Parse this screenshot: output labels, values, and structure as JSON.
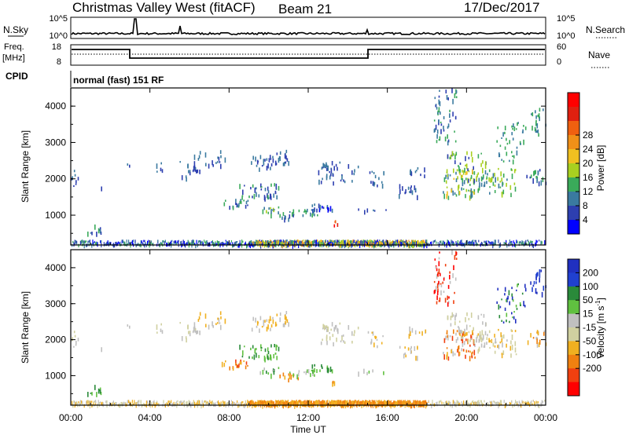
{
  "header": {
    "site": "Christmas Valley West (fitACF)",
    "beam": "Beam 21",
    "date": "17/Dec/2017"
  },
  "top_panels": {
    "nsky_label": "N.Sky",
    "nsky_ticks": [
      "10^5",
      "10^0"
    ],
    "nsearch_label": "N.Search",
    "nsearch_ticks": [
      "10^5",
      "10^0"
    ],
    "freq_label_line1": "Freq.",
    "freq_label_line2": "[MHz]",
    "freq_ticks": [
      "18",
      "8"
    ],
    "nave_label": "Nave",
    "nave_ticks": [
      "60",
      "0"
    ],
    "cpid_label": "CPID",
    "cpid_text": "normal (fast) 151 RF"
  },
  "colors": {
    "power_bar": [
      "#0000ff",
      "#2d3fb0",
      "#3a7aa0",
      "#3aaa5a",
      "#a8d020",
      "#f0c020",
      "#f09018",
      "#f06010",
      "#e02010",
      "#ff0000"
    ],
    "velocity_bar": [
      "#2030c0",
      "#2040d0",
      "#2a8a3a",
      "#60c040",
      "#c0c0c0",
      "#d0d0a0",
      "#f0b020",
      "#f08010",
      "#f04010",
      "#ff0000"
    ]
  },
  "chart_data": [
    {
      "type": "heatmap",
      "name": "power-panel",
      "ylabel": "Slant Range [km]",
      "yticks": [
        "1000",
        "2000",
        "3000",
        "4000"
      ],
      "ylim": [
        180,
        4500
      ],
      "xlim_hours": [
        0,
        24
      ],
      "colorbar": {
        "label": "Power [dB]",
        "ticks": [
          "4",
          "8",
          "12",
          "16",
          "20",
          "24",
          "28"
        ]
      }
    },
    {
      "type": "heatmap",
      "name": "velocity-panel",
      "ylabel": "Slant Range [km]",
      "yticks": [
        "1000",
        "2000",
        "3000",
        "4000"
      ],
      "ylim": [
        180,
        4500
      ],
      "xlim_hours": [
        0,
        24
      ],
      "xticks": [
        "00:00",
        "04:00",
        "08:00",
        "12:00",
        "16:00",
        "20:00",
        "00:00"
      ],
      "xlabel": "Time UT",
      "colorbar": {
        "label": "Velocity [m s",
        "label_sup": "-1",
        "label_end": "]",
        "ticks": [
          "200",
          "100",
          "50",
          "15",
          "-15",
          "-50",
          "-100",
          "-200"
        ]
      }
    }
  ]
}
